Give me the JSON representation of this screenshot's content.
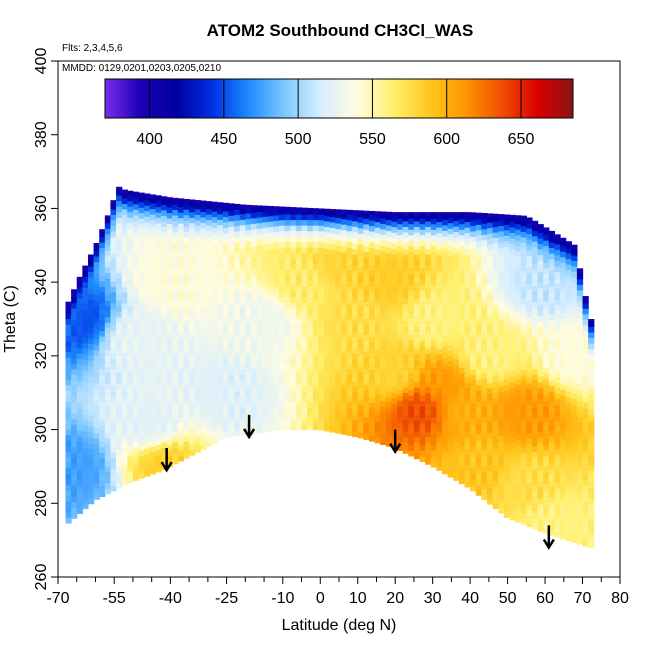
{
  "chart_data": {
    "type": "heatmap",
    "title": "ATOM2 Southbound CH3Cl_WAS",
    "notes": [
      "Flts: 2,3,4,5,6",
      "MMDD: 0129,0201,0203,0205,0210"
    ],
    "xlabel": "Latitude (deg N)",
    "ylabel": "Theta (C)",
    "xlim": [
      -70,
      80
    ],
    "ylim": [
      260,
      400
    ],
    "x_ticks": [
      -70,
      -55,
      -40,
      -25,
      -10,
      0,
      10,
      20,
      30,
      40,
      50,
      60,
      70,
      80
    ],
    "y_ticks": [
      260,
      280,
      300,
      320,
      340,
      360,
      380,
      400
    ],
    "colorbar": {
      "range": [
        370,
        685
      ],
      "ticks": [
        400,
        450,
        500,
        550,
        600,
        650
      ],
      "colors": [
        "#7a2be8",
        "#1c00b8",
        "#0000a0",
        "#0032e6",
        "#1e8cff",
        "#7ec8ff",
        "#d8eeff",
        "#fffce0",
        "#fff06e",
        "#ffc81e",
        "#ff9600",
        "#f05000",
        "#dc0000",
        "#8a1414"
      ]
    },
    "annotations": [
      {
        "label": "arrow",
        "x": -41,
        "y_start": 295,
        "y_end": 289
      },
      {
        "label": "arrow",
        "x": -19,
        "y_start": 304,
        "y_end": 298
      },
      {
        "label": "arrow",
        "x": 20,
        "y_start": 300,
        "y_end": 294
      },
      {
        "label": "arrow",
        "x": 61,
        "y_start": 274,
        "y_end": 268
      }
    ],
    "field": {
      "x_range": [
        -68,
        72
      ],
      "upper_boundary": [
        [
          -68,
          333
        ],
        [
          -64,
          342
        ],
        [
          -60,
          350
        ],
        [
          -56,
          360
        ],
        [
          -54,
          366
        ],
        [
          -52,
          365
        ],
        [
          -40,
          363
        ],
        [
          -20,
          361
        ],
        [
          0,
          360
        ],
        [
          20,
          359
        ],
        [
          40,
          359
        ],
        [
          55,
          358
        ],
        [
          60,
          355
        ],
        [
          68,
          350
        ],
        [
          72,
          330
        ]
      ],
      "lower_boundary": [
        [
          -68,
          274
        ],
        [
          -60,
          281
        ],
        [
          -50,
          286
        ],
        [
          -42,
          289
        ],
        [
          -25,
          298
        ],
        [
          -10,
          300
        ],
        [
          0,
          300
        ],
        [
          10,
          298
        ],
        [
          20,
          295
        ],
        [
          30,
          290
        ],
        [
          40,
          284
        ],
        [
          50,
          276
        ],
        [
          60,
          272
        ],
        [
          72,
          268
        ]
      ],
      "anchors": [
        {
          "x": -64,
          "y": 330,
          "v": 450
        },
        {
          "x": -66,
          "y": 290,
          "v": 475
        },
        {
          "x": -50,
          "y": 325,
          "v": 525
        },
        {
          "x": -45,
          "y": 300,
          "v": 520
        },
        {
          "x": -42,
          "y": 292,
          "v": 585
        },
        {
          "x": -40,
          "y": 340,
          "v": 540
        },
        {
          "x": -25,
          "y": 310,
          "v": 520
        },
        {
          "x": -15,
          "y": 330,
          "v": 530
        },
        {
          "x": -5,
          "y": 340,
          "v": 565
        },
        {
          "x": 5,
          "y": 345,
          "v": 580
        },
        {
          "x": 10,
          "y": 330,
          "v": 575
        },
        {
          "x": 18,
          "y": 340,
          "v": 585
        },
        {
          "x": 20,
          "y": 315,
          "v": 580
        },
        {
          "x": 27,
          "y": 306,
          "v": 640
        },
        {
          "x": 32,
          "y": 312,
          "v": 610
        },
        {
          "x": 30,
          "y": 330,
          "v": 560
        },
        {
          "x": 38,
          "y": 305,
          "v": 600
        },
        {
          "x": 45,
          "y": 320,
          "v": 560
        },
        {
          "x": 42,
          "y": 290,
          "v": 590
        },
        {
          "x": 55,
          "y": 305,
          "v": 610
        },
        {
          "x": 55,
          "y": 285,
          "v": 575
        },
        {
          "x": 60,
          "y": 340,
          "v": 510
        },
        {
          "x": 62,
          "y": 275,
          "v": 560
        },
        {
          "x": 68,
          "y": 320,
          "v": 540
        }
      ],
      "upper_band": [
        {
          "depth": 2,
          "v": 400
        },
        {
          "depth": 6,
          "v": 455
        },
        {
          "depth": 12,
          "v": 500
        }
      ]
    }
  }
}
